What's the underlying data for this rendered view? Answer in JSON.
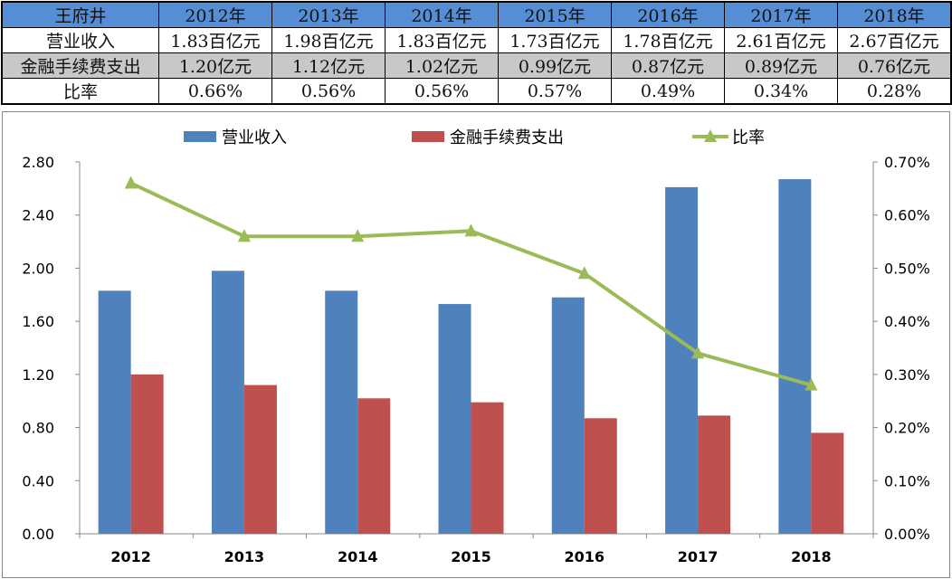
{
  "table": {
    "header": [
      "王府井",
      "2012年",
      "2013年",
      "2014年",
      "2015年",
      "2016年",
      "2017年",
      "2018年"
    ],
    "rows": [
      [
        "营业收入",
        "1.83百亿元",
        "1.98百亿元",
        "1.83百亿元",
        "1.73百亿元",
        "1.78百亿元",
        "2.61百亿元",
        "2.67百亿元"
      ],
      [
        "金融手续费支出",
        "1.20亿元",
        "1.12亿元",
        "1.02亿元",
        "0.99亿元",
        "0.87亿元",
        "0.89亿元",
        "0.76亿元"
      ],
      [
        "比率",
        "0.66%",
        "0.56%",
        "0.56%",
        "0.57%",
        "0.49%",
        "0.34%",
        "0.28%"
      ]
    ]
  },
  "chart_data": {
    "type": "bar+line",
    "categories": [
      "2012",
      "2013",
      "2014",
      "2015",
      "2016",
      "2017",
      "2018"
    ],
    "series": [
      {
        "name": "营业收入",
        "type": "bar",
        "axis": "left",
        "color": "#4f81bd",
        "values": [
          1.83,
          1.98,
          1.83,
          1.73,
          1.78,
          2.61,
          2.67
        ]
      },
      {
        "name": "金融手续费支出",
        "type": "bar",
        "axis": "left",
        "color": "#c0504d",
        "values": [
          1.2,
          1.12,
          1.02,
          0.99,
          0.87,
          0.89,
          0.76
        ]
      },
      {
        "name": "比率",
        "type": "line",
        "axis": "right",
        "marker": "triangle",
        "color": "#9bbb59",
        "values": [
          0.66,
          0.56,
          0.56,
          0.57,
          0.49,
          0.34,
          0.28
        ]
      }
    ],
    "left_axis": {
      "ylim": [
        0,
        2.8
      ],
      "ticks": [
        "0.00",
        "0.40",
        "0.80",
        "1.20",
        "1.60",
        "2.00",
        "2.40",
        "2.80"
      ]
    },
    "right_axis": {
      "ylim": [
        0,
        0.7
      ],
      "ticks": [
        "0.00%",
        "0.10%",
        "0.20%",
        "0.30%",
        "0.40%",
        "0.50%",
        "0.60%",
        "0.70%"
      ]
    },
    "grid": false,
    "legend": "top"
  }
}
